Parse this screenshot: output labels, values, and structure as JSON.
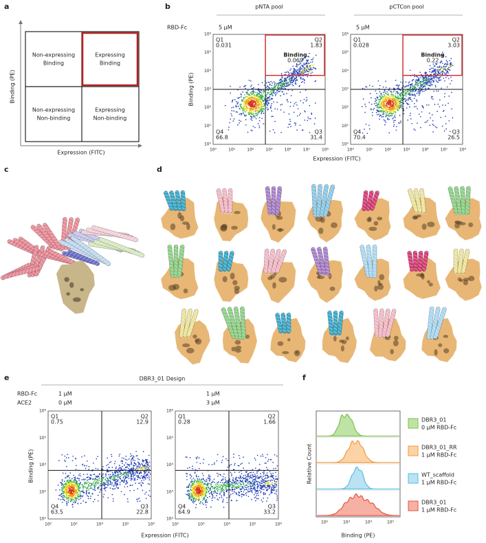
{
  "panels": {
    "a": {
      "label": "a",
      "quadrants": [
        [
          "Non-expressing",
          "Binding"
        ],
        [
          "Expressing",
          "Binding"
        ],
        [
          "Non-expressing",
          "Non-binding"
        ],
        [
          "Expressing",
          "Non-binding"
        ]
      ],
      "y_label": "Binding (PE)",
      "x_label": "Expression (FITC)"
    },
    "b": {
      "label": "b",
      "row_label": "RBD-Fc",
      "y_label": "Binding (PE)",
      "x_label": "Expression (FITC)",
      "quadrant_names": [
        "Q1",
        "Q2",
        "Q3",
        "Q4"
      ],
      "binding_label": "Binding",
      "ticks": [
        "10⁰",
        "10¹",
        "10²",
        "10³",
        "10⁴",
        "10⁵",
        "10⁶"
      ],
      "plots": [
        {
          "title": "pNTA pool",
          "concentration": "5 μM",
          "q": [
            0.031,
            1.83,
            31.4,
            66.8
          ],
          "binding": 0.069
        },
        {
          "title": "pCTCon pool",
          "concentration": "5 μM",
          "q": [
            0.028,
            3.03,
            26.5,
            70.4
          ],
          "binding": 0.22
        }
      ]
    },
    "c": {
      "label": "c"
    },
    "d": {
      "label": "d"
    },
    "e": {
      "label": "e",
      "title": "DBR3_01 Design",
      "row_labels": [
        "RBD-Fc",
        "ACE2"
      ],
      "y_label": "Binding (PE)",
      "x_label": "Expression (FITC)",
      "quadrant_names": [
        "Q1",
        "Q2",
        "Q3",
        "Q4"
      ],
      "ticks": [
        "10²",
        "10³",
        "10⁴",
        "10⁵",
        "10⁶"
      ],
      "plots": [
        {
          "concentrations": [
            "1 μM",
            "0 μM"
          ],
          "q": [
            0.75,
            12.9,
            22.8,
            63.5
          ]
        },
        {
          "concentrations": [
            "1 μM",
            "3 μM"
          ],
          "q": [
            0.28,
            1.66,
            33.2,
            64.9
          ]
        }
      ]
    },
    "f": {
      "label": "f",
      "y_label": "Relative Count",
      "x_label": "Binding (PE)",
      "ticks": [
        "10²",
        "10³",
        "10⁴",
        "10⁵"
      ],
      "legend": [
        [
          "DBR3_01",
          "0 μM RBD-Fc"
        ],
        [
          "DBR3_01_RR",
          "1 μM RBD-Fc"
        ],
        [
          "WT_scaffold",
          "1 μM RBD-Fc"
        ],
        [
          "DBR3_01",
          "1 μM RBD-Fc"
        ]
      ]
    }
  }
}
